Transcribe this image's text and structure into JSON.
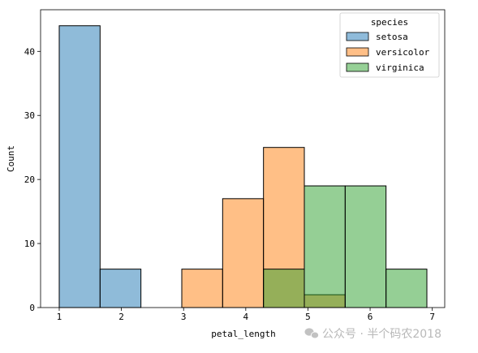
{
  "chart_data": {
    "type": "bar",
    "subtype": "histogram-overlay",
    "xlabel": "petal_length",
    "ylabel": "Count",
    "xlim": [
      0.7,
      7.2
    ],
    "ylim": [
      0,
      46.5
    ],
    "xticks": [
      1,
      2,
      3,
      4,
      5,
      6,
      7
    ],
    "yticks": [
      0,
      10,
      20,
      30,
      40
    ],
    "grid": false,
    "legend": {
      "title": "species",
      "position": "top-right"
    },
    "bin_edges": [
      1.0,
      1.657,
      2.314,
      2.971,
      3.628,
      4.285,
      4.942,
      5.599,
      6.256,
      6.913
    ],
    "series": [
      {
        "name": "setosa",
        "color": "#1f77b4",
        "counts": [
          44,
          6,
          0,
          0,
          0,
          0,
          0,
          0,
          0
        ]
      },
      {
        "name": "versicolor",
        "color": "#ff7f0e",
        "counts": [
          0,
          0,
          0,
          6,
          17,
          25,
          2,
          0,
          0
        ]
      },
      {
        "name": "virginica",
        "color": "#2ca02c",
        "counts": [
          0,
          0,
          0,
          0,
          0,
          6,
          19,
          19,
          6
        ]
      }
    ]
  },
  "watermark": {
    "text": "公众号 · 半个码农2018",
    "icon": "wechat-icon"
  }
}
